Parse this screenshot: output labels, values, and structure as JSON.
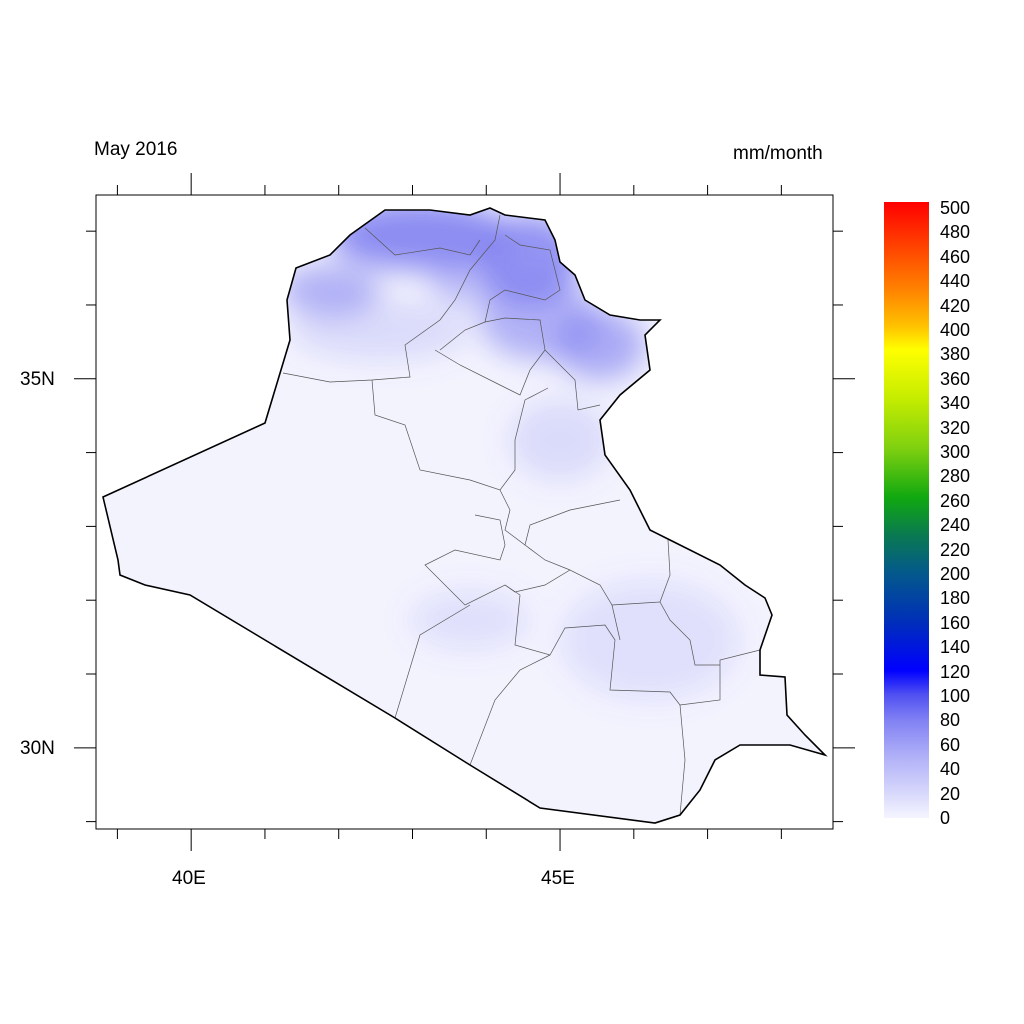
{
  "map": {
    "title_left": "May 2016",
    "title_right": "mm/month",
    "lon_range": [
      38.71,
      48.7
    ],
    "lat_range": [
      28.9,
      37.49
    ],
    "x_ticks": [
      {
        "value": 40,
        "label": "40E"
      },
      {
        "value": 45,
        "label": "45E"
      }
    ],
    "y_ticks": [
      {
        "value": 35,
        "label": "35N"
      },
      {
        "value": 30,
        "label": "30N"
      }
    ],
    "minor_lon": [
      39,
      40,
      41,
      42,
      43,
      44,
      45,
      46,
      47,
      48
    ],
    "minor_lat": [
      29,
      30,
      31,
      32,
      33,
      34,
      35,
      36,
      37
    ],
    "region_fill": "#f3f3fe",
    "north_fill": "#7b7bf0",
    "border_color": "#000000"
  },
  "colorbar": {
    "min": 0,
    "max": 500,
    "labels": [
      "500",
      "480",
      "460",
      "440",
      "420",
      "400",
      "380",
      "360",
      "340",
      "320",
      "300",
      "280",
      "260",
      "240",
      "220",
      "200",
      "180",
      "160",
      "140",
      "120",
      "100",
      "80",
      "60",
      "40",
      "20",
      "0"
    ],
    "colors": [
      "#f5f5ff",
      "#d8d8fc",
      "#b0b0f8",
      "#8080f4",
      "#5050f2",
      "#0000ff",
      "#0030b8",
      "#045a8a",
      "#0a7a50",
      "#10a810",
      "#7fd010",
      "#c4ec00",
      "#ffff00",
      "#ffc000",
      "#ff8000",
      "#ff4000",
      "#ff0000"
    ]
  }
}
